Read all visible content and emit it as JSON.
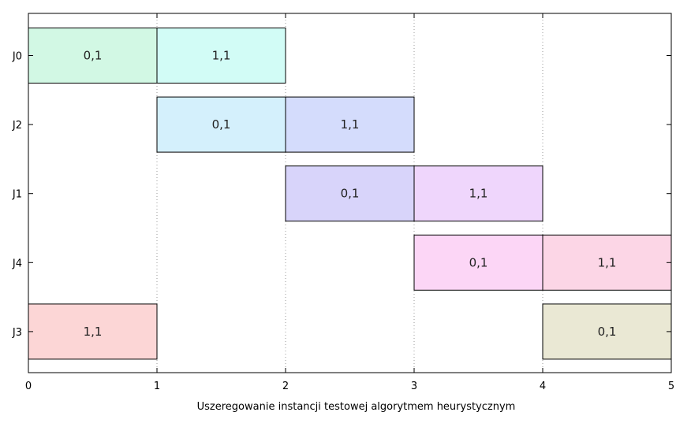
{
  "chart_data": {
    "type": "gantt",
    "xlabel": "Uszeregowanie instancji testowej algorytmem heurystycznym",
    "ylabel": "",
    "title": "",
    "xlim": [
      0,
      5
    ],
    "x_ticks": [
      "0",
      "1",
      "2",
      "3",
      "4",
      "5"
    ],
    "rows": [
      "J0",
      "J2",
      "J1",
      "J4",
      "J3"
    ],
    "grid": "vertical dotted",
    "tasks": [
      {
        "row": "J0",
        "start": 0,
        "end": 1,
        "label": "0,1",
        "color": "#d2f8e4"
      },
      {
        "row": "J0",
        "start": 1,
        "end": 2,
        "label": "1,1",
        "color": "#d2fcf6"
      },
      {
        "row": "J2",
        "start": 1,
        "end": 2,
        "label": "0,1",
        "color": "#d4f0fc"
      },
      {
        "row": "J2",
        "start": 2,
        "end": 3,
        "label": "1,1",
        "color": "#d4dcfc"
      },
      {
        "row": "J1",
        "start": 2,
        "end": 3,
        "label": "0,1",
        "color": "#d8d4fa"
      },
      {
        "row": "J1",
        "start": 3,
        "end": 4,
        "label": "1,1",
        "color": "#efd6fc"
      },
      {
        "row": "J4",
        "start": 3,
        "end": 4,
        "label": "0,1",
        "color": "#fcd6f6"
      },
      {
        "row": "J4",
        "start": 4,
        "end": 5,
        "label": "1,1",
        "color": "#fcd6e6"
      },
      {
        "row": "J3",
        "start": 0,
        "end": 1,
        "label": "1,1",
        "color": "#fcd6d6"
      },
      {
        "row": "J3",
        "start": 4,
        "end": 5,
        "label": "0,1",
        "color": "#eae8d4"
      }
    ]
  }
}
